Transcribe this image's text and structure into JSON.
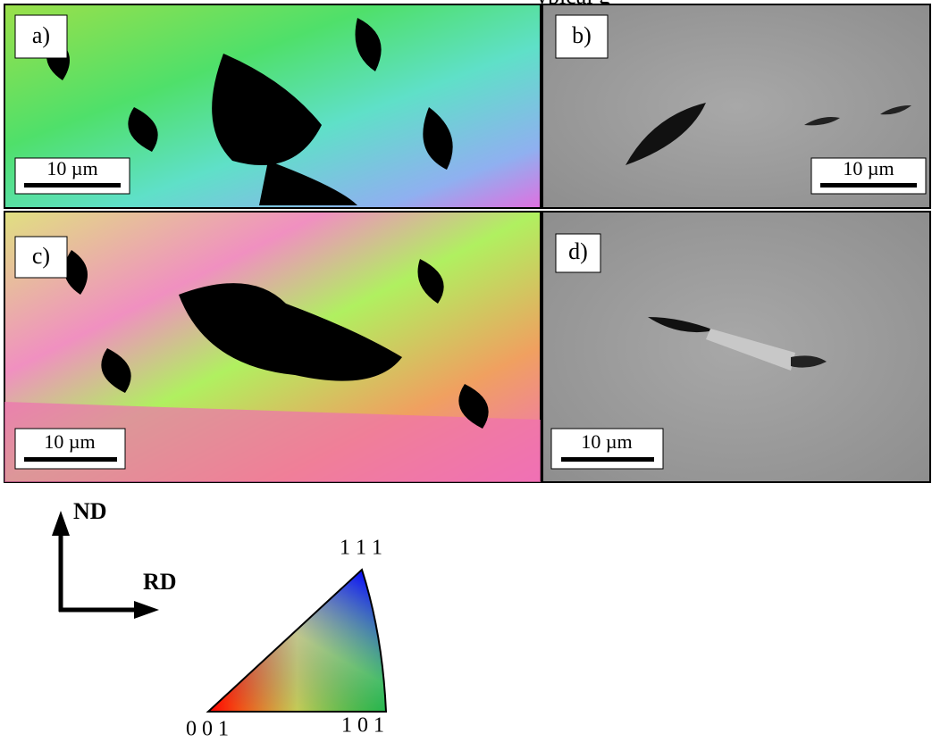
{
  "header": {
    "text": "ypical g"
  },
  "panels": [
    {
      "label": "a)",
      "scale_bar": "10 µm"
    },
    {
      "label": "b)",
      "scale_bar": "10 µm"
    },
    {
      "label": "c)",
      "scale_bar": "10 µm"
    },
    {
      "label": "d)",
      "scale_bar": "10 µm"
    }
  ],
  "axes": {
    "vertical": "ND",
    "horizontal": "RD"
  },
  "ipf_key": {
    "top": "1 1 1",
    "left": "0 0 1",
    "right": "1 0 1"
  }
}
